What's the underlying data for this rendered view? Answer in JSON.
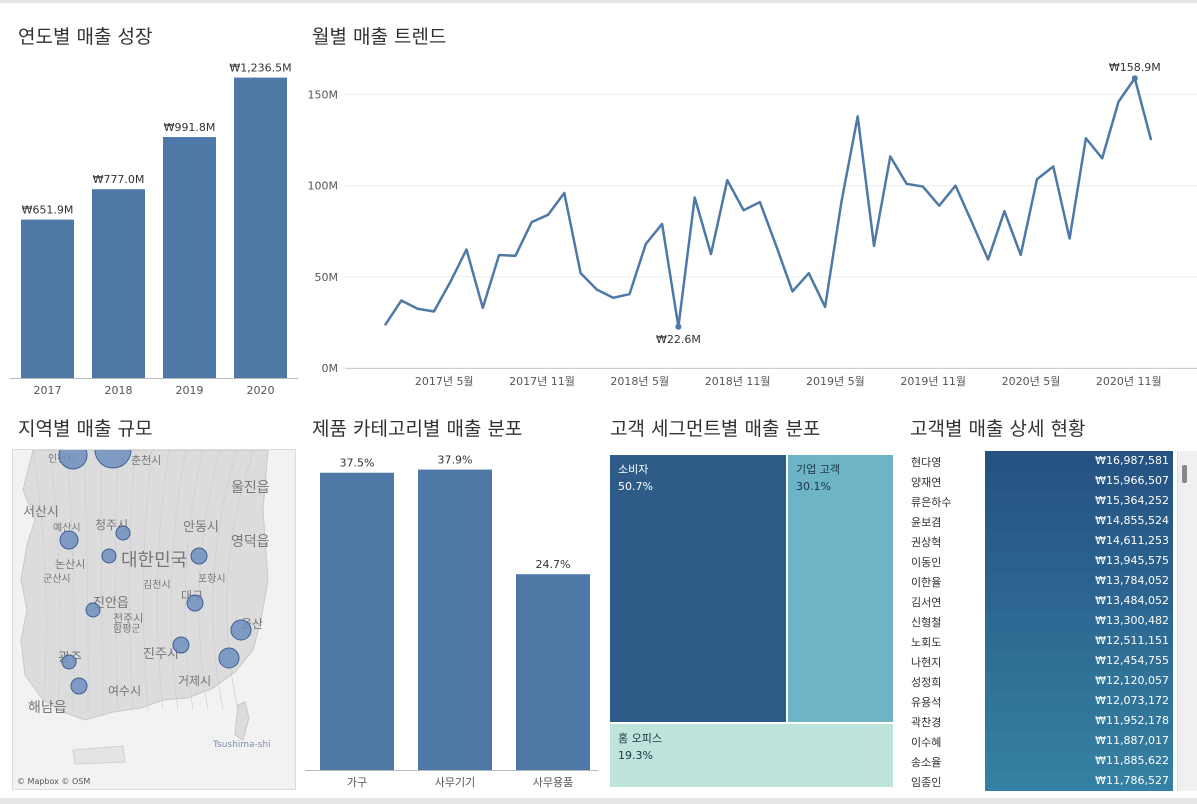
{
  "yearly": {
    "title": "연도별 매출 성장",
    "chart_data": {
      "type": "bar",
      "categories": [
        "2017",
        "2018",
        "2019",
        "2020"
      ],
      "values": [
        651.9,
        777.0,
        991.8,
        1236.5
      ],
      "labels": [
        "₩651.9M",
        "₩777.0M",
        "₩991.8M",
        "₩1,236.5M"
      ],
      "ylim": [
        0,
        1350
      ],
      "grid": false,
      "color": "#4e79a7"
    }
  },
  "monthly": {
    "title": "월별 매출 트렌드",
    "chart_data": {
      "type": "line",
      "series": [
        {
          "values": [
            23.5,
            37,
            32.5,
            31,
            47,
            65,
            33,
            62,
            61.5,
            80,
            84,
            96,
            52,
            43,
            38.5,
            40.5,
            68,
            79,
            22.6,
            93.5,
            62.5,
            103,
            86.5,
            91,
            67,
            42,
            52,
            33.5,
            91,
            138,
            67,
            116,
            101,
            99.5,
            89,
            100,
            80,
            59.5,
            86,
            62,
            103.5,
            110.5,
            71,
            126,
            115,
            146,
            158.9,
            125
          ]
        }
      ],
      "x_tick_labels": [
        "2017년 5월",
        "2017년 11월",
        "2018년 5월",
        "2018년 11월",
        "2019년 5월",
        "2019년 11월",
        "2020년 5월",
        "2020년 11월"
      ],
      "y_tick_labels": [
        "0M",
        "50M",
        "100M",
        "150M"
      ],
      "ylim": [
        0,
        170
      ],
      "annotations": [
        {
          "index": 18,
          "label": "₩22.6M"
        },
        {
          "index": 46,
          "label": "₩158.9M"
        }
      ],
      "grid": true,
      "color": "#4e79a7"
    }
  },
  "map": {
    "title": "지역별 매출 규모",
    "place_labels": [
      "인천시",
      "춘천시",
      "울진읍",
      "서산시",
      "예산시",
      "청주시",
      "안동시",
      "영덕읍",
      "논산시",
      "대한민국",
      "군산시",
      "김천시",
      "포항시",
      "전주시",
      "진안읍",
      "대구",
      "울산",
      "함평군",
      "광주",
      "진주시",
      "거제시",
      "여수시",
      "해남읍",
      "Tsushima-shi"
    ],
    "attribution": "© Mapbox © OSM"
  },
  "category": {
    "title": "제품 카테고리별 매출 분포",
    "chart_data": {
      "type": "bar",
      "categories": [
        "가구",
        "사무기기",
        "사무용품"
      ],
      "values": [
        37.5,
        37.9,
        24.7
      ],
      "labels": [
        "37.5%",
        "37.9%",
        "24.7%"
      ],
      "ylim": [
        0,
        41
      ],
      "grid": false,
      "color": "#4e79a7"
    }
  },
  "segment": {
    "title": "고객 세그먼트별 매출 분포",
    "cells": [
      {
        "name": "소비자",
        "pct": "50.7%",
        "color": "#2e5b88"
      },
      {
        "name": "기업 고객",
        "pct": "30.1%",
        "color": "#6cb4c6"
      },
      {
        "name": "홈 오피스",
        "pct": "19.3%",
        "color": "#bde5dc"
      }
    ]
  },
  "customers": {
    "title": "고객별 매출 상세 현황",
    "rows": [
      {
        "name": "현다영",
        "value": "₩16,987,581"
      },
      {
        "name": "양재연",
        "value": "₩15,966,507"
      },
      {
        "name": "류은하수",
        "value": "₩15,364,252"
      },
      {
        "name": "윤보겸",
        "value": "₩14,855,524"
      },
      {
        "name": "권상혁",
        "value": "₩14,611,253"
      },
      {
        "name": "이동인",
        "value": "₩13,945,575"
      },
      {
        "name": "이한율",
        "value": "₩13,784,052"
      },
      {
        "name": "김서연",
        "value": "₩13,484,052"
      },
      {
        "name": "신형철",
        "value": "₩13,300,482"
      },
      {
        "name": "노회도",
        "value": "₩12,511,151"
      },
      {
        "name": "나현지",
        "value": "₩12,454,755"
      },
      {
        "name": "성정희",
        "value": "₩12,120,057"
      },
      {
        "name": "유용석",
        "value": "₩12,073,172"
      },
      {
        "name": "곽찬경",
        "value": "₩11,952,178"
      },
      {
        "name": "이수혜",
        "value": "₩11,887,017"
      },
      {
        "name": "송소율",
        "value": "₩11,885,622"
      },
      {
        "name": "임종인",
        "value": "₩11,786,527"
      }
    ]
  }
}
